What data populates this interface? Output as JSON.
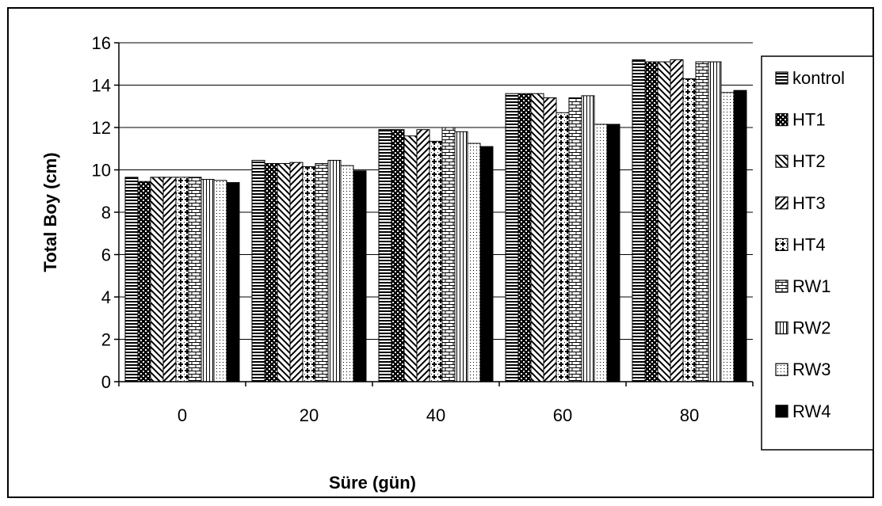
{
  "chart_data": {
    "type": "bar",
    "categories": [
      "0",
      "20",
      "40",
      "60",
      "80"
    ],
    "xlabel": "Süre (gün)",
    "ylabel": "Total Boy (cm)",
    "ylim": [
      0,
      16
    ],
    "yticks": [
      0,
      2,
      4,
      6,
      8,
      10,
      12,
      14,
      16
    ],
    "grid": true,
    "legend_position": "right",
    "series": [
      {
        "name": "kontrol",
        "pattern": "hstripes",
        "values": [
          9.65,
          10.45,
          11.9,
          13.6,
          15.2
        ]
      },
      {
        "name": "HT1",
        "pattern": "checker",
        "values": [
          9.45,
          10.3,
          11.9,
          13.6,
          15.1
        ]
      },
      {
        "name": "HT2",
        "pattern": "diagdown",
        "values": [
          9.65,
          10.3,
          11.6,
          13.6,
          15.1
        ]
      },
      {
        "name": "HT3",
        "pattern": "diagup",
        "values": [
          9.65,
          10.35,
          11.9,
          13.4,
          15.2
        ]
      },
      {
        "name": "HT4",
        "pattern": "stars",
        "values": [
          9.65,
          10.15,
          11.35,
          12.7,
          14.3
        ]
      },
      {
        "name": "RW1",
        "pattern": "brick",
        "values": [
          9.65,
          10.3,
          12.0,
          13.4,
          15.1
        ]
      },
      {
        "name": "RW2",
        "pattern": "vstripes",
        "values": [
          9.55,
          10.45,
          11.8,
          13.5,
          15.1
        ]
      },
      {
        "name": "RW3",
        "pattern": "dots",
        "values": [
          9.5,
          10.2,
          11.25,
          12.15,
          13.65
        ]
      },
      {
        "name": "RW4",
        "pattern": "solid",
        "values": [
          9.4,
          9.95,
          11.1,
          12.15,
          13.75
        ]
      }
    ]
  },
  "colors": {
    "bar_stroke": "#000000",
    "bar_fill": "#ffffff",
    "grid": "#000000"
  }
}
